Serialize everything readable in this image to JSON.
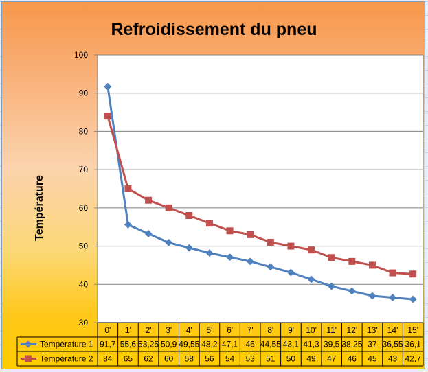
{
  "chart_data": {
    "type": "line",
    "title": "Refroidissement du pneu",
    "ylabel": "Température",
    "xlabel": "",
    "ylim": [
      30,
      100
    ],
    "ytick_step": 10,
    "grid": true,
    "legend": "data-table",
    "categories": [
      "0'",
      "1'",
      "2'",
      "3'",
      "4'",
      "5'",
      "6'",
      "7'",
      "8'",
      "9'",
      "10'",
      "11'",
      "12'",
      "13'",
      "14'",
      "15'"
    ],
    "series": [
      {
        "name": "Température 1",
        "color": "#4f81bd",
        "marker": "diamond",
        "values": [
          91.7,
          55.6,
          53.25,
          50.9,
          49.55,
          48.2,
          47.1,
          46,
          44.55,
          43.1,
          41.3,
          39.5,
          38.25,
          37,
          36.55,
          36.1
        ],
        "labels": [
          "91,7",
          "55,6",
          "53,25",
          "50,9",
          "49,55",
          "48,2",
          "47,1",
          "46",
          "44,55",
          "43,1",
          "41,3",
          "39,5",
          "38,25",
          "37",
          "36,55",
          "36,1"
        ]
      },
      {
        "name": "Température 2",
        "color": "#c0504d",
        "marker": "square",
        "values": [
          84,
          65,
          62,
          60,
          58,
          56,
          54,
          53,
          51,
          50,
          49,
          47,
          46,
          45,
          43,
          42.7
        ],
        "labels": [
          "84",
          "65",
          "62",
          "60",
          "58",
          "56",
          "54",
          "53",
          "51",
          "50",
          "49",
          "47",
          "46",
          "45",
          "43",
          "42,7"
        ]
      }
    ]
  }
}
